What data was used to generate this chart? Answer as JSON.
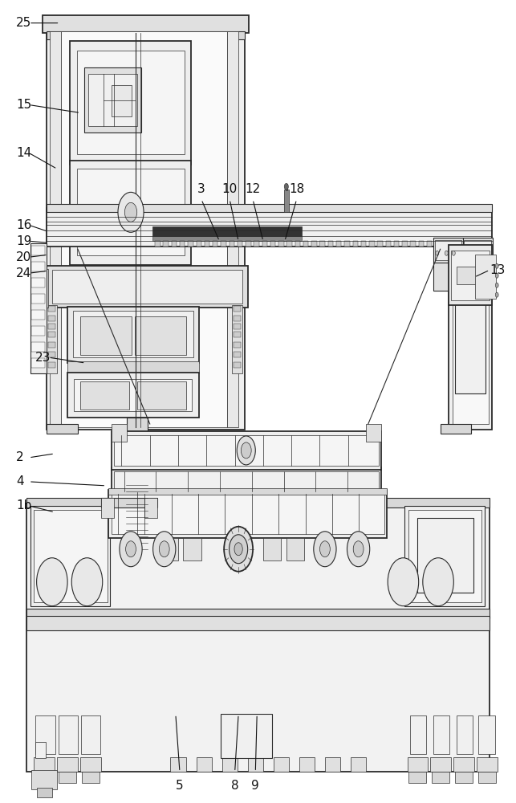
{
  "line_color": "#2a2a2a",
  "lw_thin": 0.5,
  "lw_med": 0.8,
  "lw_thick": 1.3,
  "label_fontsize": 11,
  "label_color": "#111111",
  "labels": {
    "25": [
      0.03,
      0.972,
      0.115,
      0.972
    ],
    "15": [
      0.03,
      0.87,
      0.155,
      0.86
    ],
    "14": [
      0.03,
      0.81,
      0.11,
      0.79
    ],
    "16": [
      0.03,
      0.72,
      0.092,
      0.712
    ],
    "19": [
      0.03,
      0.7,
      0.092,
      0.698
    ],
    "20": [
      0.03,
      0.68,
      0.092,
      0.683
    ],
    "24": [
      0.03,
      0.66,
      0.092,
      0.663
    ],
    "23": [
      0.068,
      0.555,
      0.165,
      0.548
    ],
    "2": [
      0.03,
      0.43,
      0.105,
      0.435
    ],
    "4": [
      0.03,
      0.4,
      0.205,
      0.395
    ],
    "1b": [
      0.03,
      0.37,
      0.105,
      0.362
    ],
    "3": [
      0.39,
      0.757,
      0.425,
      0.7
    ],
    "10": [
      0.445,
      0.757,
      0.462,
      0.7
    ],
    "12": [
      0.49,
      0.757,
      0.51,
      0.7
    ],
    "18": [
      0.575,
      0.757,
      0.552,
      0.7
    ],
    "13": [
      0.95,
      0.664,
      0.92,
      0.655
    ],
    "5": [
      0.348,
      0.028,
      0.34,
      0.11
    ],
    "8": [
      0.455,
      0.028,
      0.462,
      0.11
    ],
    "9": [
      0.495,
      0.028,
      0.498,
      0.11
    ]
  }
}
